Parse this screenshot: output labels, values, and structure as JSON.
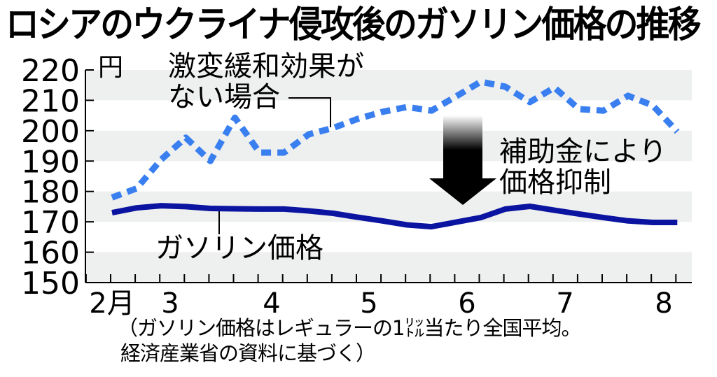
{
  "title": "ロシアのウクライナ侵攻後のガソリン価格の推移",
  "unit": "円",
  "annotations": {
    "no_subsidy_line1": "激変緩和効果が",
    "no_subsidy_line2": "ない場合",
    "gasoline_label": "ガソリン価格",
    "subsidy_line1": "補助金により",
    "subsidy_line2": "価格抑制"
  },
  "footnote": {
    "line1": "（ガソリン価格はレギュラーの1㍑当たり全国平均。",
    "line2": "経済産業省の資料に基づく）"
  },
  "colors": {
    "dashed_series": "#3a7ff0",
    "solid_series": "#0a14a0",
    "band": "#eeefef",
    "axis": "#000000"
  },
  "chart_data": {
    "type": "line",
    "title": "ロシアのウクライナ侵攻後のガソリン価格の推移",
    "xlabel": "",
    "ylabel": "円",
    "ylim": [
      150,
      220
    ],
    "yticks": [
      220,
      210,
      200,
      190,
      180,
      170,
      160,
      150
    ],
    "xtick_labels": [
      "2月",
      "3",
      "4",
      "5",
      "6",
      "7",
      "8"
    ],
    "x_unit": "week (Feb–Aug 2022)",
    "grid": "alternating horizontal bands",
    "series": [
      {
        "name": "激変緩和効果がない場合",
        "style": "dashed",
        "values": [
          178,
          181,
          190.5,
          197.7,
          190,
          204.3,
          192.8,
          192.8,
          198.8,
          200.9,
          203.9,
          206.2,
          207.8,
          206.6,
          211.3,
          216.1,
          214.5,
          209.4,
          214.2,
          207.1,
          206.6,
          211.5,
          208.3,
          199.7
        ]
      },
      {
        "name": "ガソリン価格",
        "style": "solid",
        "values": [
          173,
          174.6,
          175.3,
          175,
          174.4,
          174.3,
          174.2,
          174.2,
          173.6,
          172.8,
          171.5,
          170.3,
          169,
          168.4,
          169.9,
          171.4,
          174.2,
          175.1,
          173.8,
          172.6,
          171.4,
          170.3,
          169.8,
          169.8
        ]
      }
    ]
  }
}
